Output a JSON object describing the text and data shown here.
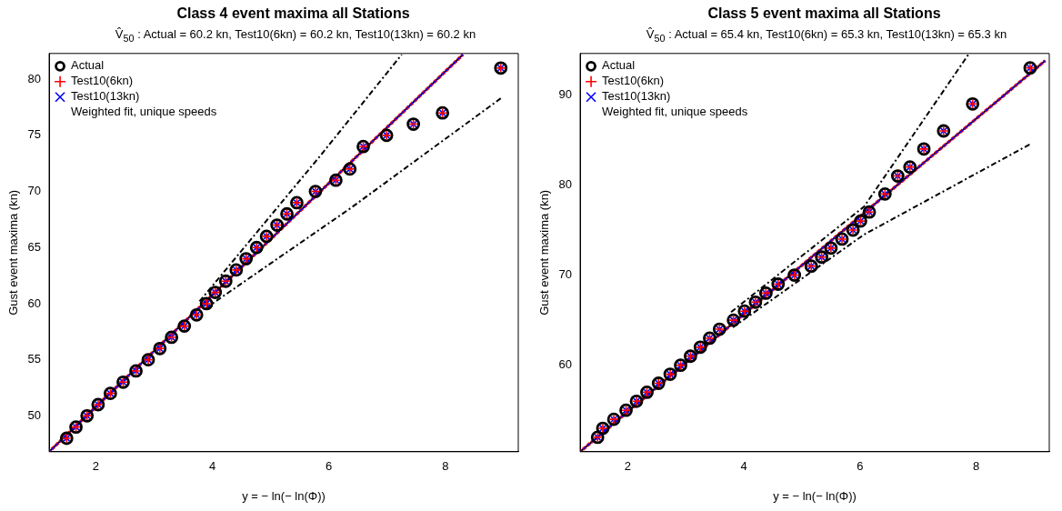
{
  "chart_data": [
    {
      "type": "scatter",
      "title": "Class 4 event maxima all Stations",
      "subtitle": "V̂$_{50}$ : Actual = 60.2 kn, Test10(6kn) = 60.2 kn, Test10(13kn) = 60.2 kn",
      "xlabel": "y = − ln(− ln(Φ))",
      "ylabel": "Gust event maxima (kn)",
      "x": [
        1.5,
        1.66,
        1.85,
        2.04,
        2.25,
        2.47,
        2.69,
        2.9,
        3.1,
        3.3,
        3.52,
        3.73,
        3.9,
        4.05,
        4.23,
        4.41,
        4.58,
        4.76,
        4.93,
        5.11,
        5.28,
        5.45,
        5.77,
        6.12,
        6.36,
        6.59,
        6.99,
        7.45,
        7.95,
        8.95
      ],
      "series": [
        {
          "name": "Actual",
          "color": "#000000",
          "marker": "circle",
          "values": [
            48,
            49,
            50,
            51,
            52,
            53,
            54,
            55,
            56,
            57,
            58,
            59,
            60,
            61,
            62,
            63,
            64,
            65,
            66,
            67,
            68,
            69,
            70,
            71,
            72,
            74,
            75,
            76,
            77,
            81
          ]
        },
        {
          "name": "Test10(6kn)",
          "color": "#ff0000",
          "marker": "cross",
          "values": [
            48,
            49,
            50,
            51,
            52,
            53,
            54,
            55,
            56,
            57,
            58,
            59,
            60,
            61,
            62,
            63,
            64,
            65,
            66,
            67,
            68,
            69,
            70,
            71,
            72,
            74,
            75,
            76,
            77,
            81
          ]
        },
        {
          "name": "Test10(13kn)",
          "color": "#0000ff",
          "marker": "x",
          "values": [
            48,
            49,
            50,
            51,
            52,
            53,
            54,
            55,
            56,
            57,
            58,
            59,
            60,
            61,
            62,
            63,
            64,
            65,
            66,
            67,
            68,
            69,
            70,
            71,
            72,
            74,
            75,
            76,
            77,
            81
          ]
        },
        {
          "type": "line",
          "color": "#000000",
          "line_style": "solid",
          "x": [
            1.2,
            8.3
          ],
          "values": [
            46.8,
            82.2
          ]
        },
        {
          "type": "line",
          "color": "#ff0000",
          "line_style": "dashed",
          "x": [
            1.2,
            8.3
          ],
          "values": [
            46.8,
            82.2
          ]
        },
        {
          "type": "line",
          "color": "#0000ff",
          "line_style": "dashed",
          "x": [
            1.2,
            8.3
          ],
          "values": [
            46.8,
            82.2
          ]
        },
        {
          "type": "line",
          "color": "#000000",
          "line_style": "dashdot",
          "x": [
            3.78,
            5.84,
            7.25
          ],
          "values": [
            60.2,
            73.1,
            82.2
          ]
        },
        {
          "type": "line",
          "color": "#000000",
          "line_style": "dashdot",
          "x": [
            3.89,
            6.37,
            8.95
          ],
          "values": [
            59.6,
            68.5,
            78.3
          ]
        }
      ],
      "annotations": [
        "Weighted fit, unique speeds"
      ],
      "xlim": [
        1.2,
        9.25
      ],
      "xticks": [
        2,
        4,
        6,
        8
      ],
      "ylim": [
        46.8,
        82.3
      ],
      "yticks": [
        50,
        55,
        60,
        65,
        70,
        75,
        80
      ],
      "grid": false,
      "legend": "top left"
    },
    {
      "type": "scatter",
      "title": "Class 5 event maxima all Stations",
      "subtitle": "V̂$_{50}$ : Actual = 65.4 kn, Test10(6kn) = 65.3 kn, Test10(13kn) = 65.3 kn",
      "xlabel": "y = − ln(− ln(Φ))",
      "ylabel": "Gust event maxima (kn)",
      "x": [
        1.48,
        1.57,
        1.76,
        1.97,
        2.15,
        2.33,
        2.53,
        2.73,
        2.91,
        3.08,
        3.25,
        3.41,
        3.58,
        3.82,
        4.01,
        4.2,
        4.38,
        4.59,
        4.87,
        5.16,
        5.34,
        5.5,
        5.69,
        5.88,
        6.01,
        6.16,
        6.43,
        6.65,
        6.86,
        7.1,
        7.44,
        7.94,
        8.93
      ],
      "series": [
        {
          "name": "Actual",
          "color": "#000000",
          "marker": "circle",
          "values": [
            52,
            53,
            54,
            55,
            56,
            57,
            58,
            59,
            60,
            61,
            62,
            63,
            64,
            65,
            66,
            67,
            68,
            69,
            70,
            71,
            72,
            73,
            74,
            75,
            76,
            77,
            79,
            81,
            82,
            84,
            86,
            89,
            93
          ]
        },
        {
          "name": "Test10(6kn)",
          "color": "#ff0000",
          "marker": "cross",
          "values": [
            52,
            53,
            54,
            55,
            56,
            57,
            58,
            59,
            60,
            61,
            62,
            63,
            64,
            65,
            66,
            67,
            68,
            69,
            70,
            71,
            72,
            73,
            74,
            75,
            76,
            77,
            79,
            81,
            82,
            84,
            86,
            89,
            93
          ]
        },
        {
          "name": "Test10(13kn)",
          "color": "#0000ff",
          "marker": "x",
          "values": [
            52,
            53,
            54,
            55,
            56,
            57,
            58,
            59,
            60,
            61,
            62,
            63,
            64,
            65,
            66,
            67,
            68,
            69,
            70,
            71,
            72,
            73,
            74,
            75,
            76,
            77,
            79,
            81,
            82,
            84,
            86,
            89,
            93
          ]
        },
        {
          "type": "line",
          "color": "#000000",
          "line_style": "solid",
          "x": [
            1.18,
            9.19
          ],
          "values": [
            50.4,
            93.8
          ]
        },
        {
          "type": "line",
          "color": "#ff0000",
          "line_style": "dashed",
          "x": [
            1.18,
            9.19
          ],
          "values": [
            50.4,
            93.8
          ]
        },
        {
          "type": "line",
          "color": "#0000ff",
          "line_style": "dashed",
          "x": [
            1.18,
            9.19
          ],
          "values": [
            50.4,
            93.8
          ]
        },
        {
          "type": "line",
          "color": "#000000",
          "line_style": "dashdot",
          "x": [
            3.78,
            6.07,
            7.88
          ],
          "values": [
            65.9,
            77.6,
            94.6
          ]
        },
        {
          "type": "line",
          "color": "#000000",
          "line_style": "dashdot",
          "x": [
            3.81,
            6.07,
            8.95
          ],
          "values": [
            64.2,
            74.5,
            84.6
          ]
        }
      ],
      "annotations": [
        "Weighted fit, unique speeds"
      ],
      "xlim": [
        1.18,
        9.26
      ],
      "xticks": [
        2,
        4,
        6,
        8
      ],
      "ylim": [
        50.4,
        94.6
      ],
      "yticks": [
        60,
        70,
        80,
        90
      ],
      "grid": false,
      "legend": "top left"
    }
  ]
}
